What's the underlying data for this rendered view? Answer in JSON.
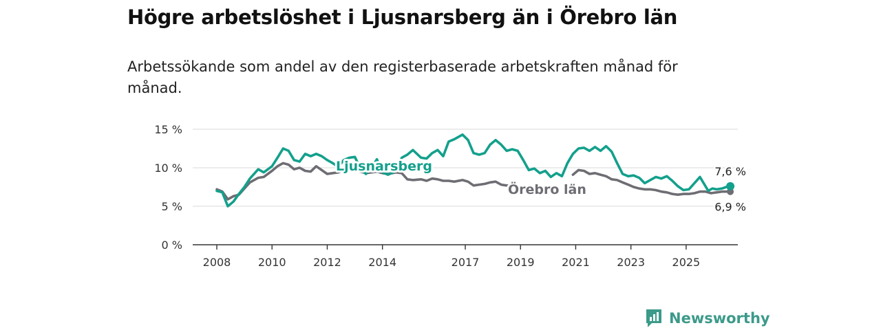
{
  "header": {
    "title": "Högre arbetslöshet i Ljusnarsberg än i Örebro län",
    "subtitle": "Arbetssökande som andel av den registerbaserade arbetskraften månad för månad."
  },
  "brand": {
    "name": "Newsworthy",
    "icon": "newsworthy-logo-icon"
  },
  "colors": {
    "ljusnarsberg": "#13a08c",
    "orebro": "#6e6d73",
    "axis": "#333333",
    "grid": "#d9d9d9",
    "brand": "#3c9a8a"
  },
  "chart_data": {
    "type": "line",
    "title": "Högre arbetslöshet i Ljusnarsberg än i Örebro län",
    "subtitle": "Arbetssökande som andel av den registerbaserade arbetskraften månad för månad.",
    "xlabel": "",
    "ylabel": "",
    "xlim": [
      2008,
      2026
    ],
    "ylim": [
      0,
      15
    ],
    "y_ticks": [
      0,
      5,
      10,
      15
    ],
    "y_tick_labels": [
      "0 %",
      "5 %",
      "10 %",
      "15 %"
    ],
    "x_ticks": [
      2008,
      2010,
      2012,
      2014,
      2017,
      2019,
      2021,
      2023,
      2025
    ],
    "x_tick_labels": [
      "2008",
      "2010",
      "2012",
      "2014",
      "2017",
      "2019",
      "2021",
      "2023",
      "2025"
    ],
    "grid": true,
    "series": [
      {
        "name": "Ljusnarsberg",
        "color": "#13a08c",
        "end_label": "7,6 %",
        "points": [
          [
            2008.0,
            7.0
          ],
          [
            2008.2,
            6.8
          ],
          [
            2008.4,
            5.0
          ],
          [
            2008.6,
            5.6
          ],
          [
            2008.8,
            6.6
          ],
          [
            2009.0,
            7.5
          ],
          [
            2009.2,
            8.6
          ],
          [
            2009.5,
            9.8
          ],
          [
            2009.7,
            9.4
          ],
          [
            2010.0,
            10.2
          ],
          [
            2010.2,
            11.3
          ],
          [
            2010.4,
            12.5
          ],
          [
            2010.6,
            12.2
          ],
          [
            2010.8,
            11.0
          ],
          [
            2011.0,
            10.8
          ],
          [
            2011.2,
            11.8
          ],
          [
            2011.4,
            11.5
          ],
          [
            2011.6,
            11.8
          ],
          [
            2011.8,
            11.5
          ],
          [
            2012.0,
            11.0
          ],
          [
            2012.2,
            10.6
          ],
          [
            2012.4,
            10.1
          ],
          [
            2012.6,
            11.0
          ],
          [
            2012.8,
            11.3
          ],
          [
            2013.0,
            11.4
          ],
          [
            2013.2,
            9.9
          ],
          [
            2013.4,
            9.2
          ],
          [
            2013.6,
            10.0
          ],
          [
            2013.8,
            11.1
          ],
          [
            2014.0,
            9.4
          ],
          [
            2014.2,
            9.1
          ],
          [
            2014.5,
            9.6
          ],
          [
            2014.7,
            11.3
          ],
          [
            2014.9,
            11.7
          ],
          [
            2015.1,
            12.3
          ],
          [
            2015.4,
            11.3
          ],
          [
            2015.6,
            11.2
          ],
          [
            2015.8,
            11.9
          ],
          [
            2016.0,
            12.3
          ],
          [
            2016.2,
            11.5
          ],
          [
            2016.4,
            13.4
          ],
          [
            2016.6,
            13.7
          ],
          [
            2016.9,
            14.3
          ],
          [
            2017.1,
            13.6
          ],
          [
            2017.3,
            11.9
          ],
          [
            2017.5,
            11.7
          ],
          [
            2017.7,
            11.9
          ],
          [
            2017.9,
            13.0
          ],
          [
            2018.1,
            13.6
          ],
          [
            2018.3,
            13.0
          ],
          [
            2018.5,
            12.2
          ],
          [
            2018.7,
            12.4
          ],
          [
            2018.9,
            12.2
          ],
          [
            2019.1,
            11.0
          ],
          [
            2019.3,
            9.7
          ],
          [
            2019.5,
            9.9
          ],
          [
            2019.7,
            9.3
          ],
          [
            2019.9,
            9.6
          ],
          [
            2020.1,
            8.8
          ],
          [
            2020.3,
            9.3
          ],
          [
            2020.5,
            8.9
          ],
          [
            2020.7,
            10.6
          ],
          [
            2020.9,
            11.8
          ],
          [
            2021.1,
            12.5
          ],
          [
            2021.3,
            12.6
          ],
          [
            2021.5,
            12.2
          ],
          [
            2021.7,
            12.7
          ],
          [
            2021.9,
            12.2
          ],
          [
            2022.1,
            12.8
          ],
          [
            2022.3,
            12.1
          ],
          [
            2022.5,
            10.6
          ],
          [
            2022.7,
            9.2
          ],
          [
            2022.9,
            8.9
          ],
          [
            2023.1,
            9.0
          ],
          [
            2023.3,
            8.7
          ],
          [
            2023.5,
            8.0
          ],
          [
            2023.7,
            8.4
          ],
          [
            2023.9,
            8.8
          ],
          [
            2024.1,
            8.6
          ],
          [
            2024.3,
            8.9
          ],
          [
            2024.5,
            8.3
          ],
          [
            2024.7,
            7.6
          ],
          [
            2024.9,
            7.1
          ],
          [
            2025.1,
            7.2
          ],
          [
            2025.3,
            8.0
          ],
          [
            2025.5,
            8.8
          ],
          [
            2025.6,
            8.2
          ],
          [
            2025.8,
            7.0
          ],
          [
            2025.95,
            7.3
          ],
          [
            2026.1,
            7.2
          ],
          [
            2026.3,
            7.3
          ],
          [
            2026.45,
            7.5
          ],
          [
            2026.6,
            7.6
          ]
        ]
      },
      {
        "name": "Örebro län",
        "color": "#6e6d73",
        "end_label": "6,9 %",
        "points": [
          [
            2008.0,
            7.2
          ],
          [
            2008.2,
            6.9
          ],
          [
            2008.4,
            5.9
          ],
          [
            2008.6,
            6.3
          ],
          [
            2008.8,
            6.5
          ],
          [
            2009.0,
            7.3
          ],
          [
            2009.2,
            8.1
          ],
          [
            2009.5,
            8.7
          ],
          [
            2009.7,
            8.8
          ],
          [
            2010.0,
            9.6
          ],
          [
            2010.2,
            10.2
          ],
          [
            2010.4,
            10.6
          ],
          [
            2010.6,
            10.4
          ],
          [
            2010.8,
            9.8
          ],
          [
            2011.0,
            10.0
          ],
          [
            2011.2,
            9.6
          ],
          [
            2011.4,
            9.5
          ],
          [
            2011.6,
            10.2
          ],
          [
            2011.8,
            9.7
          ],
          [
            2012.0,
            9.2
          ],
          [
            2012.2,
            9.3
          ],
          [
            2012.4,
            9.4
          ],
          [
            2012.6,
            9.7
          ],
          [
            2012.8,
            10.0
          ],
          [
            2013.0,
            10.0
          ],
          [
            2013.2,
            9.5
          ],
          [
            2013.4,
            9.3
          ],
          [
            2013.6,
            9.4
          ],
          [
            2013.8,
            9.5
          ],
          [
            2014.0,
            9.3
          ],
          [
            2014.2,
            9.2
          ],
          [
            2014.5,
            9.4
          ],
          [
            2014.7,
            9.3
          ],
          [
            2014.9,
            8.5
          ],
          [
            2015.1,
            8.4
          ],
          [
            2015.4,
            8.5
          ],
          [
            2015.6,
            8.3
          ],
          [
            2015.8,
            8.6
          ],
          [
            2016.0,
            8.5
          ],
          [
            2016.2,
            8.3
          ],
          [
            2016.4,
            8.3
          ],
          [
            2016.6,
            8.2
          ],
          [
            2016.9,
            8.4
          ],
          [
            2017.1,
            8.2
          ],
          [
            2017.3,
            7.7
          ],
          [
            2017.5,
            7.8
          ],
          [
            2017.7,
            7.9
          ],
          [
            2017.9,
            8.1
          ],
          [
            2018.1,
            8.2
          ],
          [
            2018.3,
            7.8
          ],
          [
            2018.5,
            7.7
          ],
          [
            2018.7,
            7.7
          ],
          [
            2018.9,
            7.6
          ],
          [
            2020.9,
            9.1
          ],
          [
            2021.1,
            9.7
          ],
          [
            2021.3,
            9.6
          ],
          [
            2021.5,
            9.2
          ],
          [
            2021.7,
            9.3
          ],
          [
            2021.9,
            9.1
          ],
          [
            2022.1,
            8.9
          ],
          [
            2022.3,
            8.5
          ],
          [
            2022.5,
            8.4
          ],
          [
            2022.7,
            8.1
          ],
          [
            2022.9,
            7.8
          ],
          [
            2023.1,
            7.5
          ],
          [
            2023.3,
            7.3
          ],
          [
            2023.5,
            7.2
          ],
          [
            2023.7,
            7.2
          ],
          [
            2023.9,
            7.1
          ],
          [
            2024.1,
            6.9
          ],
          [
            2024.3,
            6.8
          ],
          [
            2024.5,
            6.6
          ],
          [
            2024.7,
            6.5
          ],
          [
            2024.9,
            6.6
          ],
          [
            2025.1,
            6.6
          ],
          [
            2025.3,
            6.7
          ],
          [
            2025.5,
            6.9
          ],
          [
            2025.7,
            6.9
          ],
          [
            2025.9,
            6.7
          ],
          [
            2026.1,
            6.8
          ],
          [
            2026.3,
            6.9
          ],
          [
            2026.45,
            6.9
          ],
          [
            2026.6,
            6.9
          ]
        ]
      }
    ]
  }
}
